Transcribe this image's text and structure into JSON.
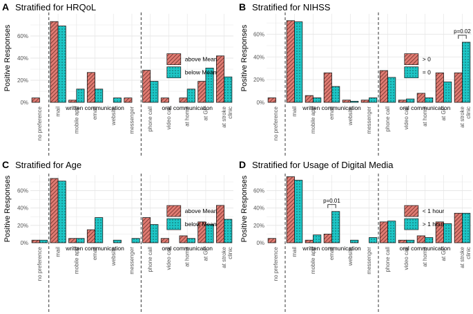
{
  "chart_data": [
    {
      "type": "bar",
      "panel": "A",
      "title": "Stratified for HRQoL",
      "ylabel": "Positive Responses",
      "ylim": [
        0,
        80
      ],
      "yticks": [
        "0%",
        "20%",
        "40%",
        "60%"
      ],
      "categories": [
        "no preference",
        "mail",
        "mobile app",
        "email",
        "website",
        "messenger",
        "phone call",
        "video call",
        "at home",
        "at GP",
        "at stroke clinic"
      ],
      "category_labels": [
        [
          "no preference"
        ],
        [
          "mail"
        ],
        [
          "mobile app"
        ],
        [
          "email"
        ],
        [
          "website"
        ],
        [
          "messenger"
        ],
        [
          "phone call"
        ],
        [
          "video call"
        ],
        [
          "at home"
        ],
        [
          "at GP"
        ],
        [
          "at stroke",
          "clinic"
        ]
      ],
      "group_labels": [
        "written communication",
        "oral communication"
      ],
      "series": [
        {
          "name": "above Mean",
          "values": [
            4,
            73,
            2,
            27,
            0,
            4,
            29,
            4,
            4,
            19,
            42
          ]
        },
        {
          "name": "below Mean",
          "values": [
            0,
            69,
            12,
            12,
            4,
            0,
            19,
            0,
            12,
            31,
            23
          ]
        }
      ],
      "legend_position": "top-right",
      "annotations": []
    },
    {
      "type": "bar",
      "panel": "B",
      "title": "Stratified for NIHSS",
      "ylabel": "Positive Responses",
      "ylim": [
        0,
        78
      ],
      "yticks": [
        "0%",
        "20%",
        "40%",
        "60%"
      ],
      "categories": [
        "no preference",
        "mail",
        "mobile app",
        "email",
        "website",
        "messenger",
        "phone call",
        "video call",
        "at home",
        "at GP",
        "at stroke clinic"
      ],
      "category_labels": [
        [
          "no preference"
        ],
        [
          "mail"
        ],
        [
          "mobile app"
        ],
        [
          "email"
        ],
        [
          "website"
        ],
        [
          "messenger"
        ],
        [
          "phone call"
        ],
        [
          "video call"
        ],
        [
          "at home"
        ],
        [
          "at GP"
        ],
        [
          "at stroke",
          "clinic"
        ]
      ],
      "group_labels": [
        "written communication",
        "oral communication"
      ],
      "series": [
        {
          "name": "> 0",
          "values": [
            4,
            72,
            6,
            26,
            2,
            2,
            28,
            2,
            8,
            26,
            26
          ]
        },
        {
          "name": "= 0",
          "values": [
            0,
            71,
            4,
            14,
            1,
            4,
            22,
            3,
            4,
            18,
            53
          ]
        }
      ],
      "legend_position": "top-right",
      "annotations": [
        {
          "text": "p=0.02",
          "category": "at stroke clinic"
        }
      ]
    },
    {
      "type": "bar",
      "panel": "C",
      "title": "Stratified for Age",
      "ylabel": "Positive Responses",
      "ylim": [
        0,
        78
      ],
      "yticks": [
        "0%",
        "20%",
        "40%",
        "60%"
      ],
      "categories": [
        "no preference",
        "mail",
        "mobile app",
        "email",
        "website",
        "messenger",
        "phone call",
        "video call",
        "at home",
        "at GP",
        "at stroke clinic"
      ],
      "category_labels": [
        [
          "no preference"
        ],
        [
          "mail"
        ],
        [
          "mobile app"
        ],
        [
          "email"
        ],
        [
          "website"
        ],
        [
          "messenger"
        ],
        [
          "phone call"
        ],
        [
          "video call"
        ],
        [
          "at home"
        ],
        [
          "at GP"
        ],
        [
          "at stroke",
          "clinic"
        ]
      ],
      "group_labels": [
        "written communication",
        "oral communication"
      ],
      "series": [
        {
          "name": "above Mean",
          "values": [
            3,
            74,
            5,
            15,
            0,
            0,
            29,
            5,
            8,
            24,
            43
          ]
        },
        {
          "name": "below Mean",
          "values": [
            3,
            71,
            5,
            29,
            3,
            5,
            21,
            0,
            5,
            21,
            27
          ]
        }
      ],
      "legend_position": "top-right",
      "annotations": []
    },
    {
      "type": "bar",
      "panel": "D",
      "title": "Stratified for Usage of Digital Media",
      "ylabel": "Positive Responses",
      "ylim": [
        0,
        78
      ],
      "yticks": [
        "0%",
        "20%",
        "40%",
        "60%"
      ],
      "categories": [
        "no preference",
        "mail",
        "mobile app",
        "email",
        "website",
        "messenger",
        "phone call",
        "video call",
        "at home",
        "at GP",
        "at stroke clinic"
      ],
      "category_labels": [
        [
          "no preference"
        ],
        [
          "mail"
        ],
        [
          "mobile app"
        ],
        [
          "email"
        ],
        [
          "website"
        ],
        [
          "messenger"
        ],
        [
          "phone call"
        ],
        [
          "video call"
        ],
        [
          "at home"
        ],
        [
          "at GP"
        ],
        [
          "at stroke",
          "clinic"
        ]
      ],
      "group_labels": [
        "written communication",
        "oral communication"
      ],
      "series": [
        {
          "name": "< 1 hour",
          "values": [
            5,
            76,
            3,
            10,
            0,
            0,
            24,
            3,
            8,
            24,
            34
          ]
        },
        {
          "name": "> 1 hour",
          "values": [
            0,
            72,
            9,
            36,
            3,
            6,
            25,
            3,
            6,
            22,
            34
          ]
        }
      ],
      "legend_position": "top-right",
      "annotations": [
        {
          "text": "p=0.01",
          "category": "email"
        }
      ]
    }
  ],
  "colors": {
    "series_a": "#e07b72",
    "series_b": "#1ec6c6",
    "hatch": "#6b2d28",
    "dots": "#0c5555",
    "grid": "#e6e6e6",
    "dash": "#333333"
  }
}
